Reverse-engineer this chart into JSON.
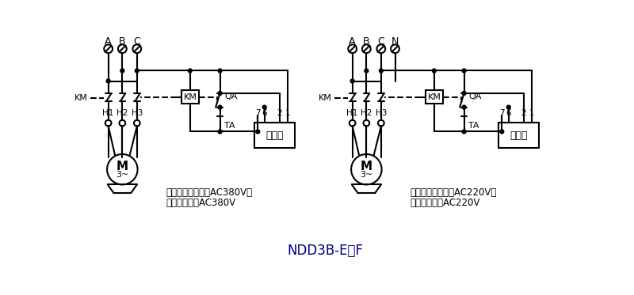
{
  "title": "NDD3B-E、F",
  "left_labels": [
    "A",
    "B",
    "C"
  ],
  "right_labels": [
    "A",
    "B",
    "C",
    "N"
  ],
  "left_text1": "保护器工作电压为AC380V；",
  "left_text2": "交流接触器为AC380V",
  "right_text1": "保护器工作电压为AC220V；",
  "right_text2": "交流接触器为AC220V",
  "h_labels": [
    "H1",
    "H2",
    "H3"
  ],
  "pin_labels": [
    "7",
    "6",
    "2",
    "1"
  ],
  "protector_label": "保护器",
  "bg_color": "#ffffff",
  "line_color": "#000000",
  "title_color": "#000080"
}
